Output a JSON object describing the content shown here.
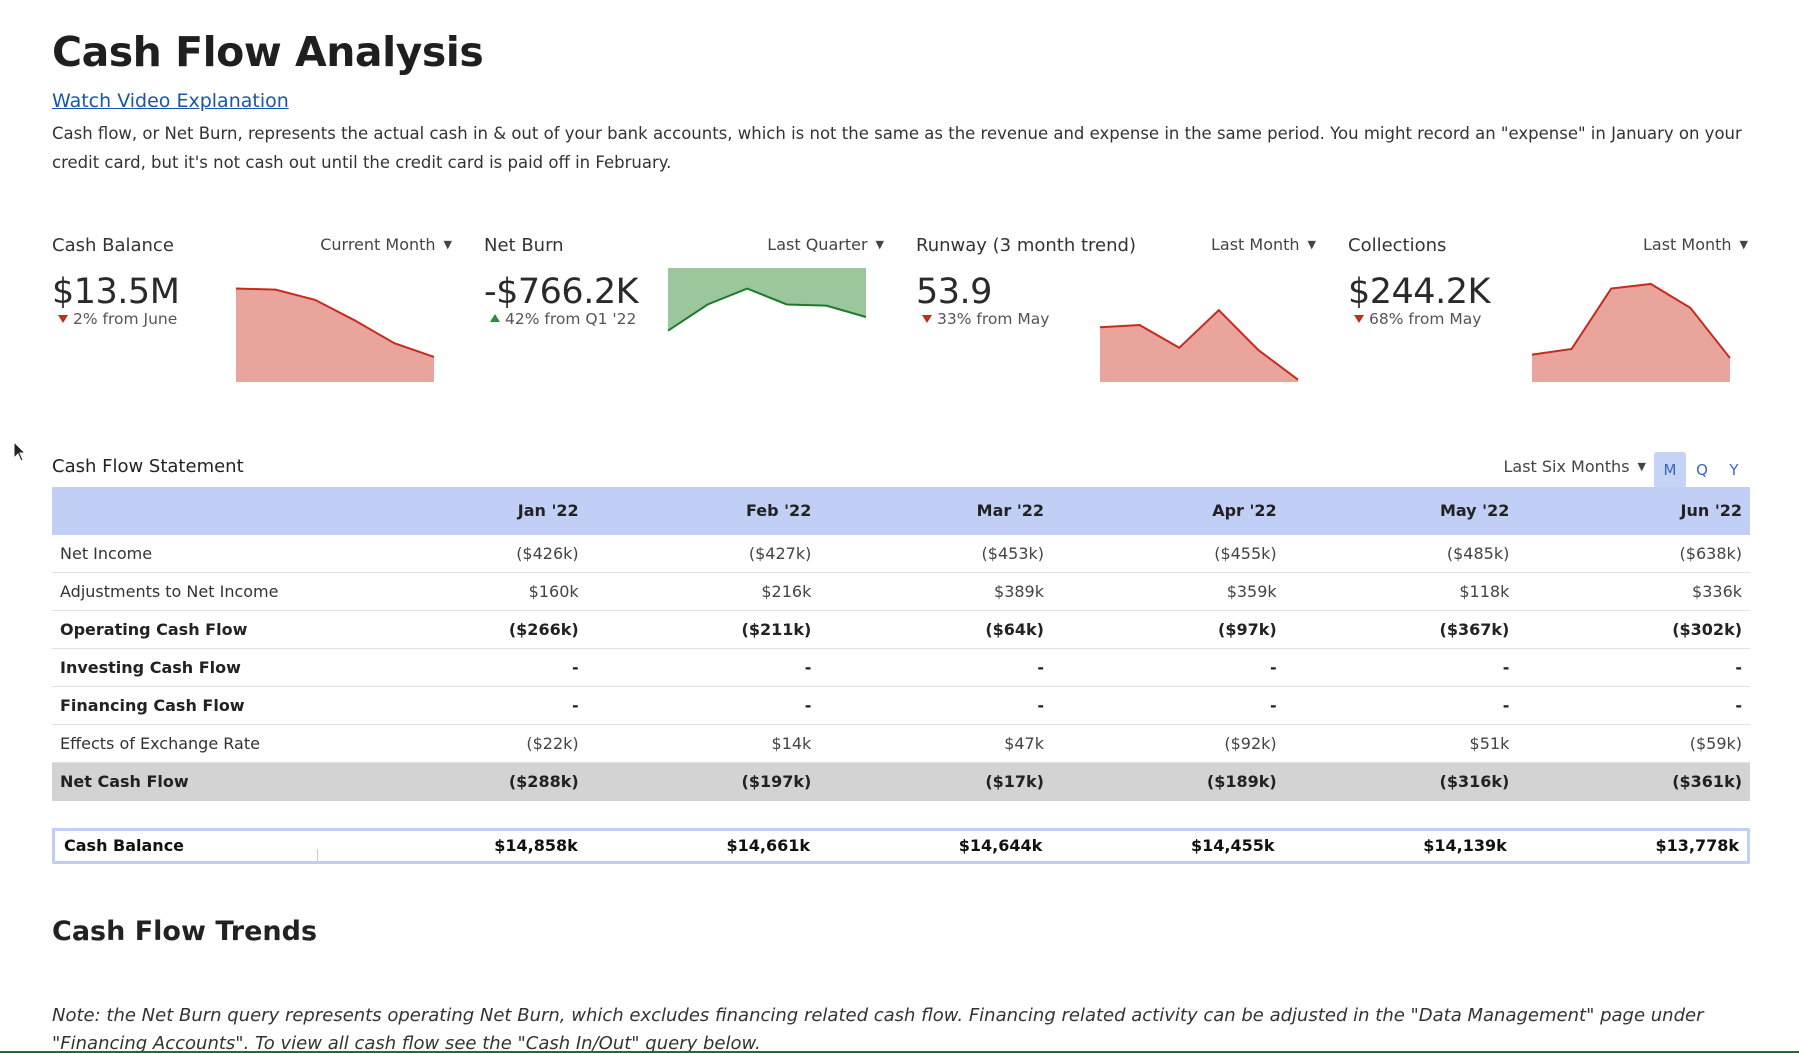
{
  "page": {
    "title": "Cash Flow Analysis",
    "video_link": "Watch Video Explanation",
    "intro": "Cash flow, or Net Burn, represents the actual cash in & out of your bank accounts, which is not the same as the revenue and expense in the same period. You might record an \"expense\" in January on your credit card, but it's not cash out until the credit card is paid off in February."
  },
  "kpis": [
    {
      "label": "Cash Balance",
      "period": "Current Month",
      "value": "$13.5M",
      "change": "2% from June",
      "direction": "down",
      "color": "#c62b1f",
      "spark": [
        0.82,
        0.81,
        0.72,
        0.54,
        0.34,
        0.22
      ]
    },
    {
      "label": "Net Burn",
      "period": "Last Quarter",
      "value": "-$766.2K",
      "change": "42% from Q1 '22",
      "direction": "up",
      "color": "#1f7a2e",
      "spark": [
        0.45,
        0.68,
        0.82,
        0.68,
        0.67,
        0.57
      ]
    },
    {
      "label": "Runway (3 month trend)",
      "period": "Last Month",
      "value": "53.9",
      "change": "33% from May",
      "direction": "down",
      "color": "#c62b1f",
      "spark": [
        0.48,
        0.5,
        0.3,
        0.63,
        0.28,
        0.02
      ]
    },
    {
      "label": "Collections",
      "period": "Last Month",
      "value": "$244.2K",
      "change": "68% from May",
      "direction": "down",
      "color": "#c62b1f",
      "spark": [
        0.24,
        0.29,
        0.82,
        0.86,
        0.65,
        0.21
      ]
    }
  ],
  "statement": {
    "title": "Cash Flow Statement",
    "range": "Last Six Months",
    "granularity": [
      "M",
      "Q",
      "Y"
    ],
    "active_granularity": "M",
    "columns": [
      "Jan '22",
      "Feb '22",
      "Mar '22",
      "Apr '22",
      "May '22",
      "Jun '22"
    ],
    "rows": [
      {
        "label": "Net Income",
        "values": [
          "($426k)",
          "($427k)",
          "($453k)",
          "($455k)",
          "($485k)",
          "($638k)"
        ],
        "style": "normal"
      },
      {
        "label": "Adjustments to Net Income",
        "values": [
          "$160k",
          "$216k",
          "$389k",
          "$359k",
          "$118k",
          "$336k"
        ],
        "style": "normal"
      },
      {
        "label": "Operating Cash Flow",
        "values": [
          "($266k)",
          "($211k)",
          "($64k)",
          "($97k)",
          "($367k)",
          "($302k)"
        ],
        "style": "bold"
      },
      {
        "label": "Investing Cash Flow",
        "values": [
          "-",
          "-",
          "-",
          "-",
          "-",
          "-"
        ],
        "style": "bold"
      },
      {
        "label": "Financing Cash Flow",
        "values": [
          "-",
          "-",
          "-",
          "-",
          "-",
          "-"
        ],
        "style": "bold"
      },
      {
        "label": "Effects of Exchange Rate",
        "values": [
          "($22k)",
          "$14k",
          "$47k",
          "($92k)",
          "$51k",
          "($59k)"
        ],
        "style": "normal"
      },
      {
        "label": "Net Cash Flow",
        "values": [
          "($288k)",
          "($197k)",
          "($17k)",
          "($189k)",
          "($316k)",
          "($361k)"
        ],
        "style": "total"
      }
    ],
    "balance": {
      "label": "Cash Balance",
      "values": [
        "$14,858k",
        "$14,661k",
        "$14,644k",
        "$14,455k",
        "$14,139k",
        "$13,778k"
      ]
    }
  },
  "trends": {
    "title": "Cash Flow Trends",
    "note": "Note: the Net Burn query represents operating Net Burn, which excludes financing related cash flow. Financing related activity can be adjusted in the \"Data Management\" page under \"Financing Accounts\". To view all cash flow see the \"Cash In/Out\" query below."
  },
  "colors": {
    "header_bg": "#c1cff7",
    "total_bg": "#d3d3d3",
    "negative": "#c62b1f",
    "positive": "#1f7a2e",
    "link": "#1a56a8"
  }
}
